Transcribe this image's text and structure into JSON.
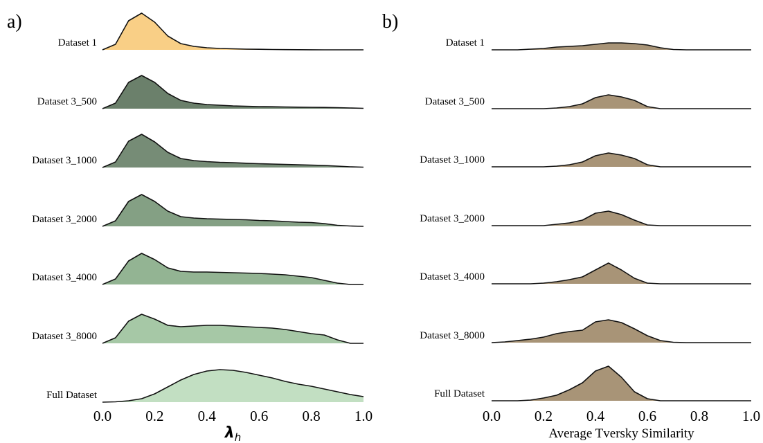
{
  "chart_data": [
    {
      "type": "ridgeline",
      "panel_label": "a)",
      "x_label": {
        "main": "λ",
        "sub": "h"
      },
      "xlim": [
        0,
        1
      ],
      "ylim": [
        0,
        6
      ],
      "xticks": [
        {
          "value": 0,
          "label": "0.0"
        },
        {
          "value": 0.2,
          "label": "0.2"
        },
        {
          "value": 0.4,
          "label": "0.4"
        },
        {
          "value": 0.6,
          "label": "0.6"
        },
        {
          "value": 0.8,
          "label": "0.8"
        },
        {
          "value": 1,
          "label": "1.0"
        }
      ],
      "x": [
        0,
        0.05,
        0.1,
        0.15,
        0.2,
        0.25,
        0.3,
        0.35,
        0.4,
        0.45,
        0.5,
        0.55,
        0.6,
        0.65,
        0.7,
        0.75,
        0.8,
        0.85,
        0.9,
        0.95,
        1
      ],
      "series": [
        {
          "name": "Dataset 1",
          "color": "#f9cf86",
          "values": [
            0,
            0.8,
            4.2,
            5.3,
            4.0,
            2.0,
            0.9,
            0.5,
            0.3,
            0.2,
            0.15,
            0.1,
            0.08,
            0.05,
            0.03,
            0.02,
            0.01,
            0,
            0,
            0,
            0
          ]
        },
        {
          "name": "Dataset  3_500",
          "color": "#6b806b",
          "values": [
            0,
            0.8,
            3.8,
            4.8,
            3.8,
            2.2,
            1.2,
            0.8,
            0.6,
            0.5,
            0.4,
            0.35,
            0.3,
            0.28,
            0.25,
            0.22,
            0.2,
            0.18,
            0.15,
            0.1,
            0.05
          ]
        },
        {
          "name": "Dataset  3_1000",
          "color": "#768c76",
          "values": [
            0,
            0.8,
            3.8,
            4.8,
            3.7,
            2.2,
            1.3,
            1.0,
            0.85,
            0.75,
            0.7,
            0.62,
            0.55,
            0.5,
            0.45,
            0.4,
            0.35,
            0.3,
            0.2,
            0.1,
            0.05
          ]
        },
        {
          "name": "Dataset  3_2000",
          "color": "#84a084",
          "values": [
            0,
            0.8,
            3.6,
            4.6,
            3.6,
            2.2,
            1.4,
            1.2,
            1.1,
            1.05,
            1.0,
            0.95,
            0.85,
            0.8,
            0.7,
            0.6,
            0.55,
            0.4,
            0.15,
            0.05,
            0
          ]
        },
        {
          "name": "Dataset  3_4000",
          "color": "#93b493",
          "values": [
            0,
            0.8,
            3.4,
            4.5,
            3.6,
            2.4,
            1.9,
            1.8,
            1.8,
            1.75,
            1.7,
            1.65,
            1.6,
            1.5,
            1.4,
            1.2,
            1.0,
            0.6,
            0.2,
            0,
            0
          ]
        },
        {
          "name": "Dataset  3_8000",
          "color": "#a6c8a6",
          "values": [
            0,
            0.8,
            3.2,
            4.2,
            3.5,
            2.6,
            2.4,
            2.5,
            2.6,
            2.6,
            2.5,
            2.4,
            2.3,
            2.2,
            2.0,
            1.7,
            1.4,
            1.2,
            0.5,
            0,
            0
          ]
        },
        {
          "name": "Full Dataset",
          "color": "#c2dfc2",
          "values": [
            0,
            0.05,
            0.2,
            0.5,
            1.2,
            2.2,
            3.2,
            4.0,
            4.5,
            4.7,
            4.6,
            4.3,
            3.9,
            3.5,
            3.0,
            2.6,
            2.3,
            1.9,
            1.5,
            1.1,
            0.8
          ]
        }
      ]
    },
    {
      "type": "ridgeline",
      "panel_label": "b)",
      "x_label": {
        "main": "Average Tversky Similarity"
      },
      "xlim": [
        0,
        1
      ],
      "ylim": [
        0,
        6
      ],
      "xticks": [
        {
          "value": 0,
          "label": "0.0"
        },
        {
          "value": 0.2,
          "label": "0.2"
        },
        {
          "value": 0.4,
          "label": "0.4"
        },
        {
          "value": 0.6,
          "label": "0.6"
        },
        {
          "value": 0.8,
          "label": "0.8"
        },
        {
          "value": 1,
          "label": "1.0"
        }
      ],
      "x": [
        0,
        0.05,
        0.1,
        0.15,
        0.2,
        0.25,
        0.3,
        0.35,
        0.4,
        0.45,
        0.5,
        0.55,
        0.6,
        0.65,
        0.7,
        0.75,
        0.8,
        0.85,
        0.9,
        0.95,
        1
      ],
      "series": [
        {
          "name": "Dataset 1",
          "color": "#a89477",
          "values": [
            0,
            0,
            0,
            0.1,
            0.2,
            0.4,
            0.5,
            0.6,
            0.8,
            1.0,
            1.0,
            0.9,
            0.7,
            0.3,
            0.05,
            0,
            0,
            0,
            0,
            0,
            0
          ]
        },
        {
          "name": "Dataset  3_500",
          "color": "#a89477",
          "values": [
            0,
            0,
            0,
            0,
            0,
            0.1,
            0.3,
            0.7,
            1.6,
            2.0,
            1.7,
            1.2,
            0.3,
            0,
            0,
            0,
            0,
            0,
            0,
            0,
            0
          ]
        },
        {
          "name": "Dataset  3_1000",
          "color": "#a89477",
          "values": [
            0,
            0,
            0,
            0,
            0,
            0.1,
            0.3,
            0.7,
            1.6,
            2.0,
            1.7,
            1.2,
            0.3,
            0,
            0,
            0,
            0,
            0,
            0,
            0,
            0
          ]
        },
        {
          "name": "Dataset  3_2000",
          "color": "#a89477",
          "values": [
            0,
            0,
            0,
            0,
            0,
            0.2,
            0.4,
            0.8,
            1.8,
            2.1,
            1.6,
            0.8,
            0.1,
            0,
            0,
            0,
            0,
            0,
            0,
            0,
            0
          ]
        },
        {
          "name": "Dataset  3_4000",
          "color": "#a89477",
          "values": [
            0,
            0,
            0,
            0,
            0.1,
            0.3,
            0.6,
            1.0,
            2.0,
            3.0,
            2.0,
            0.8,
            0.1,
            0,
            0,
            0,
            0,
            0,
            0,
            0,
            0
          ]
        },
        {
          "name": "Dataset  3_8000",
          "color": "#a89477",
          "values": [
            0,
            0.1,
            0.3,
            0.5,
            0.8,
            1.3,
            1.6,
            1.8,
            3.0,
            3.3,
            2.9,
            2.0,
            1.0,
            0.3,
            0.05,
            0,
            0,
            0,
            0,
            0,
            0
          ]
        },
        {
          "name": "Full Dataset",
          "color": "#a89477",
          "values": [
            0,
            0,
            0,
            0.1,
            0.4,
            0.8,
            1.6,
            2.6,
            4.3,
            5.0,
            3.4,
            1.3,
            0.3,
            0,
            0,
            0,
            0,
            0,
            0,
            0,
            0
          ]
        }
      ]
    }
  ]
}
